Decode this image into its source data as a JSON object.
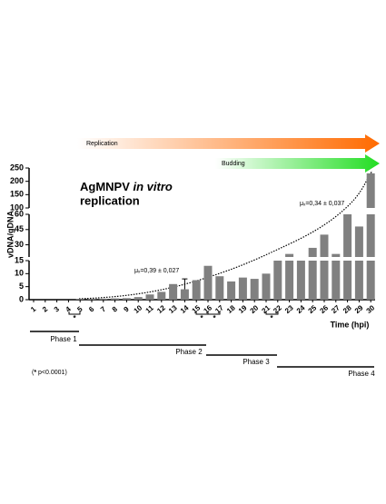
{
  "chart_data": {
    "type": "bar",
    "title": [
      "AgMNPV",
      "in vitro",
      "replication"
    ],
    "ylabel": "vDNA/gDNA",
    "xlabel": "Time (hpi)",
    "categories": [
      1,
      2,
      3,
      4,
      5,
      6,
      7,
      8,
      9,
      10,
      11,
      12,
      13,
      14,
      15,
      16,
      17,
      18,
      19,
      20,
      21,
      22,
      23,
      24,
      25,
      26,
      27,
      28,
      29,
      30
    ],
    "series": [
      {
        "color": "#808080",
        "values": [
          0,
          0,
          0,
          0,
          0.3,
          0.3,
          0.4,
          0.5,
          0.6,
          1,
          2,
          3,
          6,
          4,
          7.5,
          13,
          9,
          7,
          8.5,
          8,
          10,
          15.5,
          21,
          17,
          27,
          40,
          21,
          60,
          48,
          230
        ],
        "errors": [
          null,
          null,
          null,
          null,
          null,
          null,
          null,
          null,
          null,
          null,
          null,
          null,
          null,
          4,
          null,
          null,
          null,
          null,
          null,
          null,
          null,
          null,
          null,
          null,
          null,
          null,
          null,
          null,
          null,
          null
        ]
      }
    ],
    "y_segments": [
      {
        "ylim": [
          0,
          15
        ],
        "yticks": [
          0,
          5,
          10,
          15
        ]
      },
      {
        "ylim": [
          18,
          60
        ],
        "yticks": [
          30,
          45,
          60
        ]
      },
      {
        "ylim": [
          100,
          250
        ],
        "yticks": [
          100,
          150,
          200,
          250
        ]
      }
    ],
    "annotations": {
      "rate_1": "μₓ=0,39 ± 0,027",
      "rate_2": "μₓ=0,34 ± 0,037",
      "arrow_1": "Replication",
      "arrow_2": "Budding",
      "stars": [
        "*",
        "*",
        "*",
        "*"
      ],
      "phases": [
        "Phase 1",
        "Phase 2",
        "Phase 3",
        "Phase 4"
      ],
      "footnote_star": "*",
      "footnote": "p<0.0001"
    }
  }
}
